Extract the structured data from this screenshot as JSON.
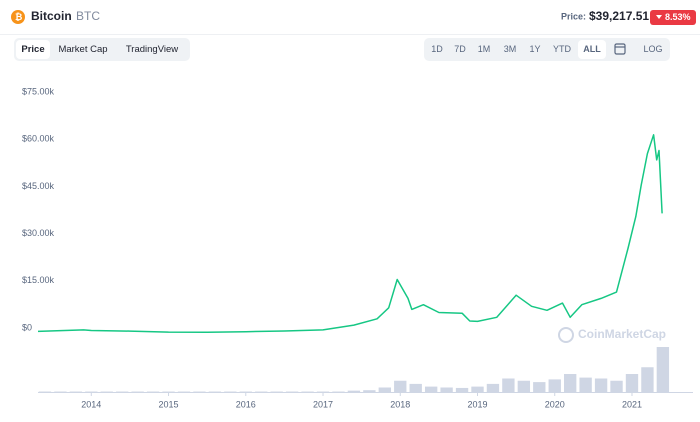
{
  "header": {
    "name": "Bitcoin",
    "symbol": "BTC",
    "price_label": "Price:",
    "price": "$39,217.51",
    "change": "8.53%"
  },
  "tabs": [
    "Price",
    "Market Cap",
    "TradingView"
  ],
  "ranges": [
    "1D",
    "7D",
    "1M",
    "3M",
    "1Y",
    "YTD",
    "ALL"
  ],
  "log_button": "LOG",
  "watermark": "CoinMarketCap",
  "chart_data": {
    "type": "line",
    "xlim": [
      2013.31,
      2021.79
    ],
    "xticks": [
      2014,
      2015,
      2016,
      2017,
      2018,
      2019,
      2020,
      2021
    ],
    "ylim": [
      0,
      75000
    ],
    "yticks": [
      {
        "value": 0,
        "label": "$0"
      },
      {
        "value": 15000,
        "label": "$15.00k"
      },
      {
        "value": 30000,
        "label": "$30.00k"
      },
      {
        "value": 45000,
        "label": "$45.00k"
      },
      {
        "value": 60000,
        "label": "$60.00k"
      },
      {
        "value": 75000,
        "label": "$75.00k"
      }
    ],
    "y2lim": [
      0,
      100
    ],
    "grid": false,
    "series": [
      {
        "color": "#16c784",
        "x": [
          2013.31,
          2013.9,
          2014.0,
          2014.5,
          2015.0,
          2015.5,
          2016.0,
          2016.5,
          2017.0,
          2017.4,
          2017.7,
          2017.85,
          2017.96,
          2018.1,
          2018.15,
          2018.3,
          2018.5,
          2018.8,
          2018.9,
          2019.0,
          2019.25,
          2019.5,
          2019.7,
          2019.9,
          2020.1,
          2020.2,
          2020.35,
          2020.6,
          2020.8,
          2020.95,
          2021.05,
          2021.12,
          2021.2,
          2021.28,
          2021.32,
          2021.35,
          2021.39
        ],
        "values": [
          500,
          1000,
          800,
          600,
          300,
          250,
          400,
          650,
          1000,
          2500,
          4500,
          8000,
          17000,
          11000,
          7500,
          9000,
          6500,
          6300,
          3800,
          3700,
          5000,
          12000,
          8500,
          7200,
          9500,
          5000,
          9000,
          11000,
          13000,
          27000,
          37000,
          47000,
          57000,
          63000,
          55000,
          58000,
          38000
        ]
      },
      {
        "type": "bar",
        "axis": "y2",
        "color": "#cfd6e4",
        "x": [
          2013.4,
          2013.6,
          2013.8,
          2014.0,
          2014.2,
          2014.4,
          2014.6,
          2014.8,
          2015.0,
          2015.2,
          2015.4,
          2015.6,
          2015.8,
          2016.0,
          2016.2,
          2016.4,
          2016.6,
          2016.8,
          2017.0,
          2017.2,
          2017.4,
          2017.6,
          2017.8,
          2018.0,
          2018.2,
          2018.4,
          2018.6,
          2018.8,
          2019.0,
          2019.2,
          2019.4,
          2019.6,
          2019.8,
          2020.0,
          2020.2,
          2020.4,
          2020.6,
          2020.8,
          2021.0,
          2021.2,
          2021.4
        ],
        "values": [
          1,
          1,
          1,
          1,
          1,
          1,
          1,
          1,
          1,
          1,
          1,
          1,
          1,
          1,
          1,
          1,
          1,
          1,
          1,
          1,
          3,
          4,
          10,
          25,
          18,
          12,
          10,
          9,
          12,
          18,
          30,
          25,
          22,
          28,
          40,
          32,
          30,
          25,
          40,
          55,
          100
        ]
      }
    ]
  }
}
